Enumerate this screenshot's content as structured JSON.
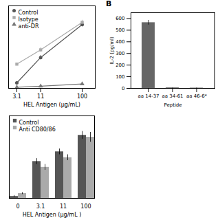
{
  "chart_data": [
    {
      "type": "line",
      "x": [
        3.1,
        11,
        100
      ],
      "xlabel": "HEL Antigen (μg/mL)",
      "xlim": [
        2,
        200
      ],
      "xticks": [
        3.1,
        11,
        100
      ],
      "ylim": [
        0,
        0.75
      ],
      "log": "x",
      "tick_labels": "x",
      "legend": "upper left",
      "series": [
        {
          "name": "Control",
          "color": "#555555",
          "marker": "circle",
          "values": [
            0.05,
            0.28,
            0.58
          ],
          "errors": [
            0.01,
            0.02,
            0.02
          ]
        },
        {
          "name": "Isotype",
          "color": "#aaaaaa",
          "marker": "square",
          "values": [
            0.22,
            0.35,
            0.6
          ],
          "errors": [
            0.01,
            0.02,
            0.02
          ]
        },
        {
          "name": "anti-DR",
          "color": "#777777",
          "marker": "triangle",
          "values": [
            0.01,
            0.02,
            0.04
          ],
          "errors": [
            0.005,
            0.005,
            0.005
          ]
        }
      ]
    },
    {
      "type": "bar",
      "title": "B",
      "categories": [
        "aa 14-37",
        "aa 34-61",
        "aa 46-6*"
      ],
      "values": [
        565,
        5,
        3
      ],
      "errors": [
        20,
        2,
        2
      ],
      "color": "#666666",
      "xlabel": "Peptide",
      "ylabel": "IL-2 (pg/ml)",
      "ylim": [
        0,
        650
      ],
      "yticks": [
        0,
        100,
        200,
        300,
        400,
        500,
        600
      ]
    },
    {
      "type": "bar",
      "categories": [
        "0",
        "3.1",
        "11",
        "100"
      ],
      "xlabel": "HEL Antigen (μg/mL )",
      "ylim": [
        0,
        0.85
      ],
      "tick_labels": "x",
      "legend": "upper left",
      "series": [
        {
          "name": "Control",
          "color": "#555555",
          "values": [
            0.02,
            0.38,
            0.48,
            0.65
          ],
          "errors": [
            0.01,
            0.03,
            0.03,
            0.04
          ]
        },
        {
          "name": "Anti CD80/86",
          "color": "#aaaaaa",
          "values": [
            0.05,
            0.32,
            0.42,
            0.63
          ],
          "errors": [
            0.01,
            0.03,
            0.03,
            0.05
          ]
        }
      ]
    }
  ]
}
